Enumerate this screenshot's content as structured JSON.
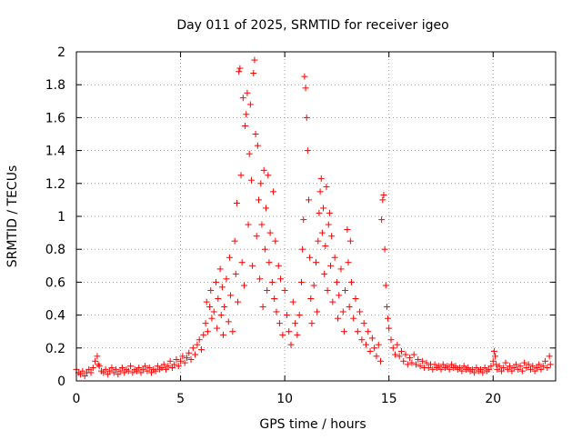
{
  "chart_data": {
    "type": "scatter",
    "title": "Day 011 of 2025, SRMTID for receiver igeo",
    "xlabel": "GPS time / hours",
    "ylabel": "SRMTID / TECUs",
    "xlim": [
      0,
      23
    ],
    "ylim": [
      0,
      2
    ],
    "xticks": [
      0,
      5,
      10,
      15,
      20
    ],
    "xtick_labels": [
      "0",
      "5",
      "10",
      "15",
      "20"
    ],
    "yticks": [
      0,
      0.2,
      0.4,
      0.6,
      0.8,
      1,
      1.2,
      1.4,
      1.6,
      1.8,
      2
    ],
    "ytick_labels": [
      "0",
      "0.2",
      "0.4",
      "0.6",
      "0.8",
      "1",
      "1.2",
      "1.4",
      "1.6",
      "1.8",
      "2"
    ],
    "grid": true,
    "marker": "+",
    "color": "#ff0000",
    "series": [
      {
        "name": "SRMTID",
        "points": [
          [
            0.0,
            0.07
          ],
          [
            0.1,
            0.05
          ],
          [
            0.2,
            0.04
          ],
          [
            0.3,
            0.06
          ],
          [
            0.4,
            0.03
          ],
          [
            0.5,
            0.05
          ],
          [
            0.6,
            0.07
          ],
          [
            0.7,
            0.05
          ],
          [
            0.8,
            0.08
          ],
          [
            0.9,
            0.12
          ],
          [
            1.0,
            0.15
          ],
          [
            1.05,
            0.1
          ],
          [
            1.1,
            0.09
          ],
          [
            1.2,
            0.06
          ],
          [
            1.3,
            0.05
          ],
          [
            1.4,
            0.07
          ],
          [
            1.5,
            0.04
          ],
          [
            1.6,
            0.06
          ],
          [
            1.7,
            0.08
          ],
          [
            1.8,
            0.05
          ],
          [
            1.9,
            0.07
          ],
          [
            2.0,
            0.04
          ],
          [
            2.1,
            0.06
          ],
          [
            2.2,
            0.08
          ],
          [
            2.3,
            0.05
          ],
          [
            2.4,
            0.07
          ],
          [
            2.5,
            0.06
          ],
          [
            2.6,
            0.09
          ],
          [
            2.7,
            0.05
          ],
          [
            2.8,
            0.07
          ],
          [
            2.9,
            0.06
          ],
          [
            3.0,
            0.08
          ],
          [
            3.1,
            0.05
          ],
          [
            3.2,
            0.07
          ],
          [
            3.3,
            0.09
          ],
          [
            3.4,
            0.06
          ],
          [
            3.5,
            0.08
          ],
          [
            3.6,
            0.05
          ],
          [
            3.7,
            0.07
          ],
          [
            3.8,
            0.06
          ],
          [
            3.9,
            0.09
          ],
          [
            4.0,
            0.07
          ],
          [
            4.1,
            0.08
          ],
          [
            4.2,
            0.1
          ],
          [
            4.3,
            0.07
          ],
          [
            4.4,
            0.09
          ],
          [
            4.5,
            0.12
          ],
          [
            4.6,
            0.08
          ],
          [
            4.7,
            0.1
          ],
          [
            4.8,
            0.13
          ],
          [
            4.9,
            0.09
          ],
          [
            5.0,
            0.12
          ],
          [
            5.1,
            0.15
          ],
          [
            5.2,
            0.11
          ],
          [
            5.3,
            0.14
          ],
          [
            5.4,
            0.17
          ],
          [
            5.5,
            0.13
          ],
          [
            5.6,
            0.2
          ],
          [
            5.7,
            0.16
          ],
          [
            5.8,
            0.22
          ],
          [
            5.9,
            0.25
          ],
          [
            6.0,
            0.19
          ],
          [
            6.1,
            0.28
          ],
          [
            6.2,
            0.35
          ],
          [
            6.25,
            0.48
          ],
          [
            6.3,
            0.3
          ],
          [
            6.4,
            0.45
          ],
          [
            6.45,
            0.55
          ],
          [
            6.5,
            0.38
          ],
          [
            6.6,
            0.42
          ],
          [
            6.7,
            0.6
          ],
          [
            6.75,
            0.32
          ],
          [
            6.8,
            0.5
          ],
          [
            6.9,
            0.68
          ],
          [
            6.95,
            0.4
          ],
          [
            7.0,
            0.57
          ],
          [
            7.05,
            0.28
          ],
          [
            7.1,
            0.45
          ],
          [
            7.2,
            0.62
          ],
          [
            7.3,
            0.36
          ],
          [
            7.35,
            0.75
          ],
          [
            7.4,
            0.52
          ],
          [
            7.5,
            0.3
          ],
          [
            7.6,
            0.85
          ],
          [
            7.65,
            0.65
          ],
          [
            7.7,
            1.08
          ],
          [
            7.75,
            0.48
          ],
          [
            7.8,
            1.88
          ],
          [
            7.85,
            1.9
          ],
          [
            7.9,
            1.25
          ],
          [
            7.95,
            0.72
          ],
          [
            8.0,
            1.72
          ],
          [
            8.05,
            0.58
          ],
          [
            8.1,
            1.55
          ],
          [
            8.15,
            1.62
          ],
          [
            8.2,
            1.75
          ],
          [
            8.25,
            0.95
          ],
          [
            8.3,
            1.38
          ],
          [
            8.35,
            1.68
          ],
          [
            8.4,
            1.22
          ],
          [
            8.45,
            0.7
          ],
          [
            8.5,
            1.87
          ],
          [
            8.55,
            1.95
          ],
          [
            8.6,
            1.5
          ],
          [
            8.65,
            0.88
          ],
          [
            8.7,
            1.43
          ],
          [
            8.75,
            1.1
          ],
          [
            8.8,
            0.62
          ],
          [
            8.85,
            1.2
          ],
          [
            8.9,
            0.95
          ],
          [
            8.95,
            0.45
          ],
          [
            9.0,
            1.28
          ],
          [
            9.05,
            0.8
          ],
          [
            9.1,
            1.05
          ],
          [
            9.15,
            0.55
          ],
          [
            9.2,
            1.25
          ],
          [
            9.25,
            0.72
          ],
          [
            9.3,
            0.9
          ],
          [
            9.4,
            0.6
          ],
          [
            9.45,
            1.15
          ],
          [
            9.5,
            0.5
          ],
          [
            9.55,
            0.85
          ],
          [
            9.6,
            0.42
          ],
          [
            9.7,
            0.7
          ],
          [
            9.75,
            0.35
          ],
          [
            9.8,
            0.62
          ],
          [
            9.9,
            0.28
          ],
          [
            10.0,
            0.55
          ],
          [
            10.1,
            0.4
          ],
          [
            10.2,
            0.3
          ],
          [
            10.3,
            0.22
          ],
          [
            10.4,
            0.48
          ],
          [
            10.5,
            0.35
          ],
          [
            10.6,
            0.28
          ],
          [
            10.7,
            0.4
          ],
          [
            10.8,
            0.6
          ],
          [
            10.85,
            0.8
          ],
          [
            10.9,
            0.98
          ],
          [
            10.95,
            1.85
          ],
          [
            11.0,
            1.78
          ],
          [
            11.05,
            1.6
          ],
          [
            11.1,
            1.4
          ],
          [
            11.15,
            1.1
          ],
          [
            11.2,
            0.75
          ],
          [
            11.25,
            0.5
          ],
          [
            11.3,
            0.35
          ],
          [
            11.4,
            0.58
          ],
          [
            11.5,
            0.72
          ],
          [
            11.55,
            0.42
          ],
          [
            11.6,
            0.85
          ],
          [
            11.65,
            1.02
          ],
          [
            11.7,
            1.15
          ],
          [
            11.75,
            1.23
          ],
          [
            11.8,
            0.9
          ],
          [
            11.85,
            1.05
          ],
          [
            11.9,
            0.65
          ],
          [
            11.95,
            0.82
          ],
          [
            12.0,
            1.18
          ],
          [
            12.05,
            0.55
          ],
          [
            12.1,
            0.95
          ],
          [
            12.15,
            1.02
          ],
          [
            12.2,
            0.7
          ],
          [
            12.25,
            0.88
          ],
          [
            12.3,
            0.48
          ],
          [
            12.4,
            0.75
          ],
          [
            12.5,
            0.6
          ],
          [
            12.55,
            0.38
          ],
          [
            12.6,
            0.52
          ],
          [
            12.7,
            0.68
          ],
          [
            12.8,
            0.42
          ],
          [
            12.85,
            0.3
          ],
          [
            12.9,
            0.55
          ],
          [
            13.0,
            0.92
          ],
          [
            13.05,
            0.72
          ],
          [
            13.1,
            0.45
          ],
          [
            13.15,
            0.85
          ],
          [
            13.2,
            0.6
          ],
          [
            13.3,
            0.38
          ],
          [
            13.4,
            0.5
          ],
          [
            13.5,
            0.3
          ],
          [
            13.6,
            0.42
          ],
          [
            13.7,
            0.25
          ],
          [
            13.8,
            0.35
          ],
          [
            13.9,
            0.22
          ],
          [
            14.0,
            0.3
          ],
          [
            14.1,
            0.18
          ],
          [
            14.2,
            0.26
          ],
          [
            14.3,
            0.2
          ],
          [
            14.4,
            0.15
          ],
          [
            14.5,
            0.22
          ],
          [
            14.6,
            0.12
          ],
          [
            14.65,
            0.98
          ],
          [
            14.7,
            1.1
          ],
          [
            14.75,
            1.13
          ],
          [
            14.8,
            0.8
          ],
          [
            14.85,
            0.58
          ],
          [
            14.9,
            0.45
          ],
          [
            14.95,
            0.38
          ],
          [
            15.0,
            0.32
          ],
          [
            15.1,
            0.25
          ],
          [
            15.2,
            0.2
          ],
          [
            15.3,
            0.16
          ],
          [
            15.4,
            0.22
          ],
          [
            15.5,
            0.15
          ],
          [
            15.6,
            0.18
          ],
          [
            15.7,
            0.12
          ],
          [
            15.8,
            0.16
          ],
          [
            15.9,
            0.1
          ],
          [
            16.0,
            0.14
          ],
          [
            16.1,
            0.11
          ],
          [
            16.2,
            0.16
          ],
          [
            16.3,
            0.1
          ],
          [
            16.4,
            0.13
          ],
          [
            16.5,
            0.09
          ],
          [
            16.6,
            0.12
          ],
          [
            16.7,
            0.08
          ],
          [
            16.8,
            0.11
          ],
          [
            16.9,
            0.08
          ],
          [
            17.0,
            0.1
          ],
          [
            17.1,
            0.07
          ],
          [
            17.2,
            0.1
          ],
          [
            17.3,
            0.08
          ],
          [
            17.4,
            0.09
          ],
          [
            17.5,
            0.07
          ],
          [
            17.6,
            0.1
          ],
          [
            17.7,
            0.08
          ],
          [
            17.8,
            0.09
          ],
          [
            17.9,
            0.07
          ],
          [
            18.0,
            0.1
          ],
          [
            18.1,
            0.08
          ],
          [
            18.2,
            0.09
          ],
          [
            18.3,
            0.07
          ],
          [
            18.4,
            0.08
          ],
          [
            18.5,
            0.06
          ],
          [
            18.6,
            0.09
          ],
          [
            18.7,
            0.07
          ],
          [
            18.8,
            0.08
          ],
          [
            18.9,
            0.06
          ],
          [
            19.0,
            0.07
          ],
          [
            19.1,
            0.05
          ],
          [
            19.2,
            0.08
          ],
          [
            19.3,
            0.06
          ],
          [
            19.4,
            0.07
          ],
          [
            19.5,
            0.05
          ],
          [
            19.6,
            0.08
          ],
          [
            19.7,
            0.06
          ],
          [
            19.8,
            0.07
          ],
          [
            19.9,
            0.09
          ],
          [
            20.0,
            0.12
          ],
          [
            20.05,
            0.18
          ],
          [
            20.1,
            0.15
          ],
          [
            20.15,
            0.1
          ],
          [
            20.2,
            0.07
          ],
          [
            20.3,
            0.09
          ],
          [
            20.4,
            0.06
          ],
          [
            20.5,
            0.08
          ],
          [
            20.6,
            0.11
          ],
          [
            20.7,
            0.07
          ],
          [
            20.8,
            0.09
          ],
          [
            20.9,
            0.06
          ],
          [
            21.0,
            0.08
          ],
          [
            21.1,
            0.1
          ],
          [
            21.2,
            0.07
          ],
          [
            21.3,
            0.09
          ],
          [
            21.4,
            0.06
          ],
          [
            21.5,
            0.11
          ],
          [
            21.6,
            0.08
          ],
          [
            21.7,
            0.1
          ],
          [
            21.8,
            0.07
          ],
          [
            21.9,
            0.09
          ],
          [
            22.0,
            0.06
          ],
          [
            22.1,
            0.08
          ],
          [
            22.2,
            0.1
          ],
          [
            22.3,
            0.07
          ],
          [
            22.4,
            0.09
          ],
          [
            22.5,
            0.12
          ],
          [
            22.6,
            0.08
          ],
          [
            22.7,
            0.15
          ],
          [
            22.75,
            0.1
          ]
        ]
      }
    ]
  }
}
